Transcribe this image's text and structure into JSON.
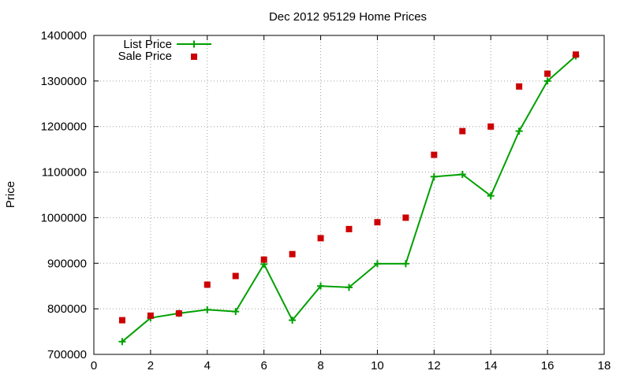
{
  "chart_data": {
    "type": "line",
    "title": "Dec 2012 95129 Home Prices",
    "xlabel": "",
    "ylabel": "Price",
    "xlim": [
      0,
      18
    ],
    "ylim": [
      700000,
      1400000
    ],
    "x_ticks": [
      0,
      2,
      4,
      6,
      8,
      10,
      12,
      14,
      16,
      18
    ],
    "y_ticks": [
      700000,
      800000,
      900000,
      1000000,
      1100000,
      1200000,
      1300000,
      1400000
    ],
    "grid": true,
    "legend_position": "top-left",
    "series": [
      {
        "name": "List Price",
        "style": "line+cross",
        "color": "#00a000",
        "x": [
          1,
          2,
          3,
          4,
          5,
          6,
          7,
          8,
          9,
          10,
          11,
          12,
          13,
          14,
          15,
          16,
          17
        ],
        "values": [
          728000,
          780000,
          790000,
          798000,
          794000,
          898000,
          775000,
          850000,
          847000,
          899000,
          899000,
          1090000,
          1095000,
          1048000,
          1190000,
          1300000,
          1355000
        ]
      },
      {
        "name": "Sale Price",
        "style": "square",
        "color": "#cc0000",
        "x": [
          1,
          2,
          3,
          4,
          5,
          6,
          7,
          8,
          9,
          10,
          11,
          12,
          13,
          14,
          15,
          16,
          17
        ],
        "values": [
          775000,
          785000,
          790000,
          853000,
          872000,
          908000,
          920000,
          955000,
          975000,
          990000,
          1000000,
          1138000,
          1190000,
          1200000,
          1288000,
          1316000,
          1358000
        ]
      }
    ]
  }
}
